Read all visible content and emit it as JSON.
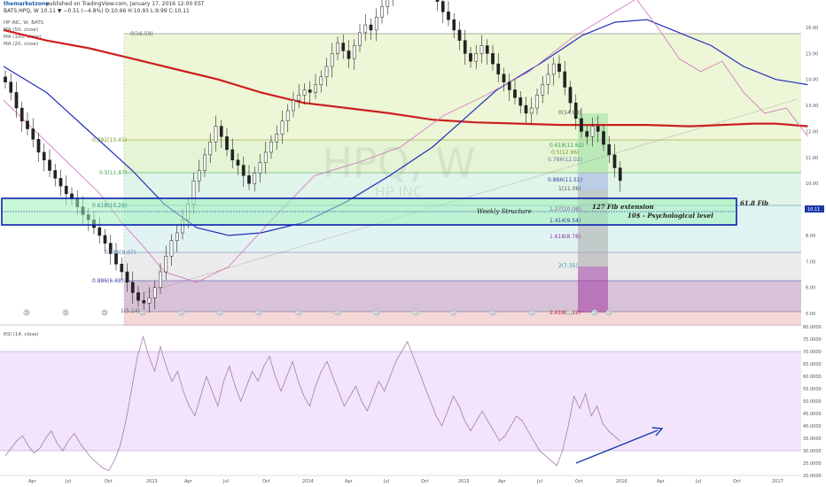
{
  "header": {
    "user": "themarketzone",
    "published": "published on TradingView.com, January 17, 2016 12:00 EST",
    "symbol_line": "BATS:HPQ, W  10.11 ▼ −0.51 (−4.8%)  O:10.66  H:10.93  L:9.99  C:10.11"
  },
  "legend": {
    "title": "HP INC, W, BATS",
    "ma1": "MA (50, close)",
    "ma2": "MA (100, close)",
    "ma3": "MA (20, close)"
  },
  "watermark": {
    "ticker": "HPQ, W",
    "name": "HP INC"
  },
  "price_axis": [
    "16.00",
    "15.00",
    "14.00",
    "13.00",
    "12.00",
    "11.00",
    "10.00",
    "9.00",
    "8.00",
    "7.00",
    "6.00",
    "5.00"
  ],
  "last_price_label": "10.11",
  "rsi_label": "RSI (14, close)",
  "rsi_axis": [
    "80.0000",
    "75.0000",
    "70.0000",
    "65.0000",
    "60.0000",
    "55.0000",
    "50.0000",
    "45.0000",
    "40.0000",
    "35.0000",
    "30.0000",
    "25.0000",
    "20.0000"
  ],
  "time_axis": [
    "Apr",
    "Jul",
    "Oct",
    "2013",
    "Apr",
    "Jul",
    "Oct",
    "2014",
    "Apr",
    "Jul",
    "Oct",
    "2015",
    "Apr",
    "Jul",
    "Oct",
    "2016",
    "Apr",
    "Jul",
    "Oct",
    "2017"
  ],
  "fib_main": [
    {
      "label": "0(16.59)",
      "color": "#666666",
      "fill": "#e6f2c4"
    },
    {
      "label": "0.382(13.45)",
      "color": "#7a9a1a",
      "fill": "#d9efc2"
    },
    {
      "label": "0.5(11.87)",
      "color": "#3aa04a",
      "fill": "#d3f0e0"
    },
    {
      "label": "0.618(10.29)",
      "color": "#2a8a8a",
      "fill": "#d5eef0"
    },
    {
      "label": "0.786(8.07)",
      "color": "#5a7aa0",
      "fill": "#e3e3e3"
    },
    {
      "label": "0.886(6.69)",
      "color": "#3a3aa0",
      "fill": "#c8a8c8"
    },
    {
      "label": "1(5.14)",
      "color": "#666666",
      "fill": "#f0c8c8"
    }
  ],
  "fib_ext": [
    {
      "label": "0(14.83)",
      "color": "#555555"
    },
    {
      "label": "0.618(12.62)",
      "color": "#3aa04a"
    },
    {
      "label": "0.5(12.96)",
      "color": "#7a9a1a"
    },
    {
      "label": "0.786(12.02)",
      "color": "#5a7aa0"
    },
    {
      "label": "0.886(11.51)",
      "color": "#3a3aa0"
    },
    {
      "label": "1(11.06)",
      "color": "#555555"
    },
    {
      "label": "1.27(10.08)",
      "color": "#8a5aa0"
    },
    {
      "label": "1.414(9.54)",
      "color": "#3a3aa0"
    },
    {
      "label": "1.618(8.78)",
      "color": "#8a3aa0"
    },
    {
      "label": "2(7.35)",
      "color": "#2aa0a0"
    },
    {
      "label": "2.618(5.12)",
      "color": "#c03030"
    }
  ],
  "annotations": {
    "weekly": "Weekly Structure",
    "fib127": "127 Fib extension",
    "psych": "10$ - Psychological level",
    "fib618": "61.8 Fib"
  },
  "dividend_marker": "D",
  "colors": {
    "ma100": "#cc1f1f",
    "ma50": "#1f2fb8",
    "ma20": "#d070c0",
    "candle": "#222222",
    "zone_fill": "#9ef0b8",
    "zone_border": "#0a1fb0",
    "rsi_line": "#a878b8",
    "rsi_band": "#f2e4fa",
    "divergence_arrow": "#1a3ab0"
  },
  "chart_data": [
    {
      "type": "line",
      "title": "HP INC, W, BATS",
      "price_ylim": [
        4.8,
        16.3
      ],
      "series": [
        {
          "name": "MA (100, close)",
          "x": [
            0,
            8,
            16,
            24,
            32,
            40,
            48,
            56,
            64,
            72,
            80,
            88,
            96,
            104,
            112,
            120,
            128,
            134,
            140,
            144,
            150
          ],
          "values": [
            15.9,
            15.5,
            15.2,
            14.8,
            14.4,
            14.0,
            13.5,
            13.1,
            12.9,
            12.7,
            12.45,
            12.35,
            12.3,
            12.25,
            12.25,
            12.25,
            12.2,
            12.25,
            12.3,
            12.3,
            12.2
          ]
        },
        {
          "name": "MA (50, close)",
          "x": [
            0,
            8,
            16,
            24,
            30,
            36,
            42,
            48,
            56,
            64,
            72,
            80,
            86,
            92,
            100,
            108,
            114,
            120,
            126,
            132,
            138,
            144,
            150
          ],
          "values": [
            14.5,
            13.5,
            12.0,
            10.5,
            9.2,
            8.3,
            8.0,
            8.1,
            8.5,
            9.3,
            10.3,
            11.4,
            12.5,
            13.6,
            14.6,
            15.7,
            16.2,
            16.3,
            15.8,
            15.3,
            14.5,
            14.0,
            13.8
          ]
        },
        {
          "name": "MA (20, close)",
          "x": [
            0,
            6,
            12,
            18,
            22,
            26,
            30,
            36,
            42,
            50,
            58,
            66,
            74,
            82,
            90,
            98,
            106,
            114,
            118,
            122,
            126,
            130,
            134,
            138,
            142,
            146,
            150
          ],
          "values": [
            13.2,
            12.0,
            10.8,
            9.6,
            8.5,
            7.6,
            6.6,
            6.2,
            6.8,
            8.6,
            10.3,
            10.8,
            11.4,
            12.6,
            13.4,
            14.3,
            15.6,
            16.6,
            17.1,
            16.0,
            14.8,
            14.3,
            14.7,
            13.5,
            12.7,
            12.9,
            11.8
          ]
        }
      ],
      "candles_close": [
        13.9,
        13.5,
        12.9,
        12.4,
        12.1,
        11.7,
        11.2,
        10.9,
        10.5,
        10.2,
        9.9,
        9.6,
        9.4,
        9.1,
        8.8,
        8.6,
        8.3,
        8.0,
        7.7,
        7.3,
        6.9,
        6.6,
        6.2,
        5.8,
        5.5,
        5.4,
        5.6,
        6.0,
        6.6,
        7.2,
        7.8,
        8.1,
        8.6,
        9.2,
        10.1,
        10.5,
        11.1,
        11.6,
        12.2,
        11.8,
        11.3,
        10.9,
        10.7,
        10.3,
        10.0,
        10.4,
        10.8,
        11.2,
        11.6,
        11.9,
        12.4,
        12.8,
        13.2,
        13.4,
        13.6,
        13.5,
        13.8,
        14.1,
        14.5,
        15.0,
        15.4,
        15.1,
        14.8,
        15.3,
        15.8,
        16.1,
        15.9,
        16.4,
        16.8,
        17.2,
        17.5,
        17.8,
        18.1,
        18.4,
        18.6,
        18.3,
        17.9,
        17.5,
        17.0,
        16.6,
        16.3,
        15.9,
        15.5,
        15.0,
        14.7,
        15.0,
        15.3,
        15.0,
        14.6,
        14.2,
        13.9,
        13.6,
        13.3,
        13.0,
        12.7,
        12.9,
        13.4,
        13.8,
        14.2,
        14.6,
        14.3,
        13.7,
        13.1,
        12.5,
        12.0,
        11.8,
        12.2,
        12.0,
        11.5,
        11.1,
        10.6,
        10.11
      ],
      "annotations": [
        "Weekly Structure",
        "127 Fib extension",
        "10$ - Psychological level",
        "61.8 Fib"
      ]
    },
    {
      "type": "line",
      "title": "RSI (14, close)",
      "ylim": [
        20,
        80
      ],
      "bands": [
        30,
        70
      ],
      "series": [
        {
          "name": "RSI (14, close)",
          "values": [
            28,
            31,
            34,
            36,
            32,
            29,
            31,
            35,
            38,
            33,
            30,
            34,
            37,
            33,
            30,
            27,
            25,
            23,
            22,
            26,
            32,
            42,
            55,
            68,
            76,
            68,
            62,
            72,
            64,
            58,
            62,
            54,
            48,
            44,
            52,
            60,
            54,
            48,
            58,
            64,
            56,
            50,
            56,
            62,
            58,
            64,
            68,
            60,
            54,
            60,
            66,
            58,
            52,
            48,
            56,
            62,
            66,
            60,
            54,
            48,
            52,
            56,
            50,
            46,
            52,
            58,
            54,
            60,
            66,
            70,
            74,
            68,
            62,
            56,
            50,
            44,
            40,
            46,
            52,
            48,
            42,
            38,
            42,
            46,
            42,
            38,
            34,
            36,
            40,
            44,
            42,
            38,
            34,
            30,
            28,
            26,
            24,
            30,
            40,
            52,
            47,
            53,
            44,
            48,
            41,
            38,
            36,
            34
          ]
        }
      ]
    }
  ]
}
